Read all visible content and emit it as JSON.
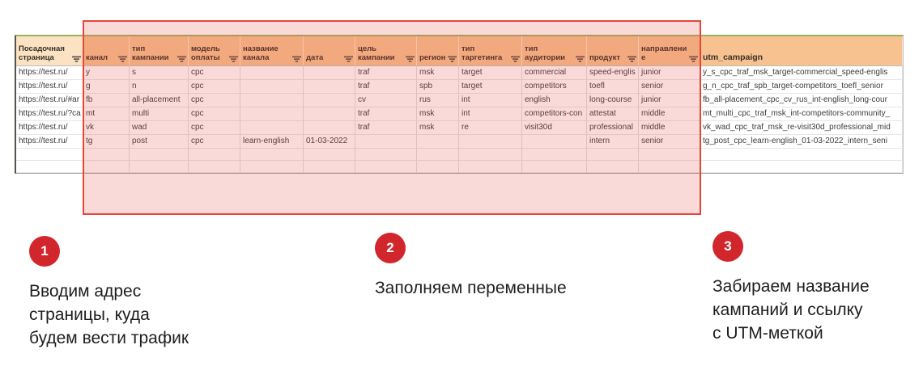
{
  "sheet": {
    "columns": [
      {
        "key": "landing",
        "label": "Посадочная страница",
        "filter": true
      },
      {
        "key": "channel",
        "label": "канал",
        "filter": true
      },
      {
        "key": "campaign_type",
        "label": "тип кампании",
        "filter": true
      },
      {
        "key": "payment_model",
        "label": "модель оплаты",
        "filter": true
      },
      {
        "key": "channel_name",
        "label": "название канала",
        "filter": true
      },
      {
        "key": "date",
        "label": "дата",
        "filter": true
      },
      {
        "key": "campaign_goal",
        "label": "цель кампании",
        "filter": true
      },
      {
        "key": "region",
        "label": "регион",
        "filter": true
      },
      {
        "key": "targeting_type",
        "label": "тип таргетинга",
        "filter": true
      },
      {
        "key": "audience_type",
        "label": "тип аудитории",
        "filter": true
      },
      {
        "key": "product",
        "label": "продукт",
        "filter": true
      },
      {
        "key": "direction",
        "label": "направление",
        "filter": true
      },
      {
        "key": "utm_campaign",
        "label": "utm_campaign",
        "filter": false
      }
    ],
    "rows": [
      [
        "https://test.ru/",
        "y",
        "s",
        "cpc",
        "",
        "",
        "traf",
        "msk",
        "target",
        "commercial",
        "speed-englis",
        "junior",
        "y_s_cpc_traf_msk_target-commercial_speed-englis"
      ],
      [
        "https://test.ru/",
        "g",
        "n",
        "cpc",
        "",
        "",
        "traf",
        "spb",
        "target",
        "competitors",
        "toefl",
        "senior",
        "g_n_cpc_traf_spb_target-competitors_toefl_senior"
      ],
      [
        "https://test.ru/#ar",
        "fb",
        "all-placement",
        "cpc",
        "",
        "",
        "cv",
        "rus",
        "int",
        "english",
        "long-course",
        "junior",
        "fb_all-placement_cpc_cv_rus_int-english_long-cour"
      ],
      [
        "https://test.ru/?ca",
        "mt",
        "multi",
        "cpc",
        "",
        "",
        "traf",
        "msk",
        "int",
        "competitors-con",
        "attestat",
        "middle",
        "mt_multi_cpc_traf_msk_int-competitors-community_"
      ],
      [
        "https://test.ru/",
        "vk",
        "wad",
        "cpc",
        "",
        "",
        "traf",
        "msk",
        "re",
        "visit30d",
        "professional",
        "middle",
        "vk_wad_cpc_traf_msk_re-visit30d_professional_mid"
      ],
      [
        "https://test.ru/",
        "tg",
        "post",
        "cpc",
        "learn-english",
        "01-03-2022",
        "",
        "",
        "",
        "",
        "intern",
        "senior",
        "tg_post_cpc_learn-english_01-03-2022_intern_seni"
      ],
      [
        "",
        "",
        "",
        "",
        "",
        "",
        "",
        "",
        "",
        "",
        "",
        "",
        ""
      ],
      [
        "",
        "",
        "",
        "",
        "",
        "",
        "",
        "",
        "",
        "",
        "",
        "",
        ""
      ]
    ]
  },
  "steps": [
    {
      "number": "1",
      "line1": "Вводим адрес",
      "line2": "страницы, куда",
      "line3": "будем вести трафик"
    },
    {
      "number": "2",
      "line1": "Заполняем переменные",
      "line2": "",
      "line3": ""
    },
    {
      "number": "3",
      "line1": "Забираем название",
      "line2": "кампаний и ссылку",
      "line3": "с UTM-меткой"
    }
  ],
  "colors": {
    "step_circle": "#d2262d",
    "overlay_border": "#e8453a",
    "overlay_fill": "rgba(232,69,58,0.20)",
    "header_bg": "#f7c28f",
    "header_first_bg": "#fae2c2",
    "header_top_border": "#9ab162"
  }
}
